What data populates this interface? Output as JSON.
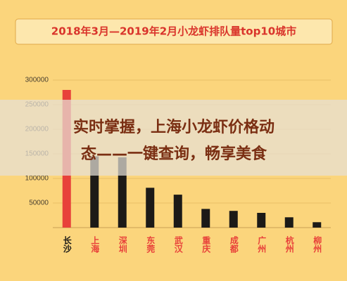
{
  "chart_data": {
    "type": "bar",
    "title": "2018年3月—2019年2月小龙虾排队量top10城市",
    "categories": [
      "长沙",
      "上海",
      "深圳",
      "东莞",
      "武汉",
      "重庆",
      "成都",
      "广州",
      "杭州",
      "柳州"
    ],
    "values": [
      280000,
      145000,
      143000,
      81000,
      67000,
      38000,
      34000,
      30000,
      21000,
      11000
    ],
    "colors": [
      "#e8413a",
      "#1c1a17",
      "#1c1a17",
      "#1c1a17",
      "#1c1a17",
      "#1c1a17",
      "#1c1a17",
      "#1c1a17",
      "#1c1a17",
      "#1c1a17"
    ],
    "ylim": [
      0,
      320000
    ],
    "yticks": [
      50000,
      100000,
      150000,
      200000,
      250000,
      300000
    ],
    "grid": true
  },
  "banner": {
    "lines": [
      "实时掌握，上海小龙虾价格动",
      "态——一键查询，畅享美食"
    ]
  }
}
